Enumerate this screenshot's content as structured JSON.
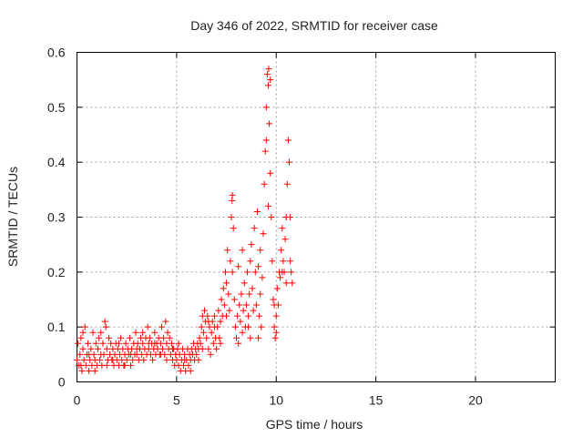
{
  "chart_data": {
    "type": "scatter",
    "title": "Day 346 of 2022, SRMTID for receiver case",
    "xlabel": "GPS time / hours",
    "ylabel": "SRMTID / TECUs",
    "xlim": [
      0,
      24
    ],
    "ylim": [
      0,
      0.6
    ],
    "xticks": [
      "0",
      "5",
      "10",
      "15",
      "20"
    ],
    "xtick_values": [
      0,
      5,
      10,
      15,
      20
    ],
    "yticks": [
      "0",
      "0.1",
      "0.2",
      "0.3",
      "0.4",
      "0.5",
      "0.6"
    ],
    "ytick_values": [
      0,
      0.1,
      0.2,
      0.3,
      0.4,
      0.5,
      0.6
    ],
    "grid": true,
    "marker": "+",
    "color": "#ff0000",
    "series": [
      {
        "name": "SRMTID",
        "points": [
          [
            0.0,
            0.04
          ],
          [
            0.05,
            0.07
          ],
          [
            0.1,
            0.03
          ],
          [
            0.15,
            0.05
          ],
          [
            0.2,
            0.08
          ],
          [
            0.25,
            0.02
          ],
          [
            0.3,
            0.06
          ],
          [
            0.35,
            0.04
          ],
          [
            0.4,
            0.1
          ],
          [
            0.45,
            0.03
          ],
          [
            0.5,
            0.05
          ],
          [
            0.55,
            0.07
          ],
          [
            0.6,
            0.02
          ],
          [
            0.65,
            0.04
          ],
          [
            0.7,
            0.06
          ],
          [
            0.75,
            0.03
          ],
          [
            0.8,
            0.09
          ],
          [
            0.85,
            0.05
          ],
          [
            0.9,
            0.04
          ],
          [
            0.95,
            0.07
          ],
          [
            1.0,
            0.03
          ],
          [
            1.05,
            0.06
          ],
          [
            1.1,
            0.08
          ],
          [
            1.15,
            0.04
          ],
          [
            1.2,
            0.05
          ],
          [
            1.25,
            0.03
          ],
          [
            1.3,
            0.07
          ],
          [
            1.35,
            0.05
          ],
          [
            1.4,
            0.11
          ],
          [
            1.45,
            0.1
          ],
          [
            1.5,
            0.06
          ],
          [
            1.55,
            0.04
          ],
          [
            1.6,
            0.08
          ],
          [
            1.65,
            0.05
          ],
          [
            1.7,
            0.07
          ],
          [
            1.75,
            0.04
          ],
          [
            1.8,
            0.06
          ],
          [
            1.85,
            0.03
          ],
          [
            1.9,
            0.05
          ],
          [
            1.95,
            0.07
          ],
          [
            2.0,
            0.04
          ],
          [
            2.05,
            0.06
          ],
          [
            2.1,
            0.03
          ],
          [
            2.15,
            0.05
          ],
          [
            2.2,
            0.08
          ],
          [
            2.25,
            0.04
          ],
          [
            2.3,
            0.06
          ],
          [
            2.35,
            0.03
          ],
          [
            2.4,
            0.05
          ],
          [
            2.45,
            0.07
          ],
          [
            2.5,
            0.04
          ],
          [
            2.55,
            0.06
          ],
          [
            2.6,
            0.05
          ],
          [
            2.65,
            0.08
          ],
          [
            2.7,
            0.03
          ],
          [
            2.75,
            0.06
          ],
          [
            2.8,
            0.04
          ],
          [
            2.85,
            0.07
          ],
          [
            2.9,
            0.05
          ],
          [
            2.95,
            0.09
          ],
          [
            3.0,
            0.05
          ],
          [
            3.05,
            0.07
          ],
          [
            3.1,
            0.04
          ],
          [
            3.15,
            0.06
          ],
          [
            3.2,
            0.08
          ],
          [
            3.25,
            0.05
          ],
          [
            3.3,
            0.07
          ],
          [
            3.35,
            0.04
          ],
          [
            3.4,
            0.06
          ],
          [
            3.45,
            0.08
          ],
          [
            3.5,
            0.05
          ],
          [
            3.55,
            0.1
          ],
          [
            3.6,
            0.06
          ],
          [
            3.65,
            0.08
          ],
          [
            3.7,
            0.05
          ],
          [
            3.75,
            0.07
          ],
          [
            3.8,
            0.04
          ],
          [
            3.85,
            0.06
          ],
          [
            3.9,
            0.09
          ],
          [
            3.95,
            0.05
          ],
          [
            4.0,
            0.07
          ],
          [
            4.05,
            0.06
          ],
          [
            4.1,
            0.08
          ],
          [
            4.15,
            0.05
          ],
          [
            4.2,
            0.07
          ],
          [
            4.25,
            0.1
          ],
          [
            4.3,
            0.06
          ],
          [
            4.35,
            0.08
          ],
          [
            4.4,
            0.05
          ],
          [
            4.45,
            0.11
          ],
          [
            4.5,
            0.07
          ],
          [
            4.55,
            0.09
          ],
          [
            4.6,
            0.06
          ],
          [
            4.65,
            0.08
          ],
          [
            4.7,
            0.05
          ],
          [
            4.75,
            0.07
          ],
          [
            4.8,
            0.04
          ],
          [
            4.85,
            0.06
          ],
          [
            4.9,
            0.03
          ],
          [
            4.95,
            0.05
          ],
          [
            5.0,
            0.04
          ],
          [
            5.05,
            0.06
          ],
          [
            5.1,
            0.03
          ],
          [
            5.15,
            0.05
          ],
          [
            5.2,
            0.02
          ],
          [
            5.25,
            0.04
          ],
          [
            5.3,
            0.06
          ],
          [
            5.35,
            0.03
          ],
          [
            5.4,
            0.05
          ],
          [
            5.45,
            0.02
          ],
          [
            5.5,
            0.04
          ],
          [
            5.55,
            0.06
          ],
          [
            5.6,
            0.03
          ],
          [
            5.65,
            0.05
          ],
          [
            5.7,
            0.04
          ],
          [
            5.75,
            0.06
          ],
          [
            5.8,
            0.05
          ],
          [
            5.85,
            0.07
          ],
          [
            5.9,
            0.04
          ],
          [
            5.95,
            0.06
          ],
          [
            6.0,
            0.05
          ],
          [
            6.05,
            0.07
          ],
          [
            6.1,
            0.06
          ],
          [
            6.15,
            0.08
          ],
          [
            6.2,
            0.07
          ],
          [
            6.25,
            0.1
          ],
          [
            6.3,
            0.12
          ],
          [
            6.35,
            0.09
          ],
          [
            6.4,
            0.13
          ],
          [
            6.45,
            0.11
          ],
          [
            6.5,
            0.08
          ],
          [
            6.55,
            0.12
          ],
          [
            6.6,
            0.06
          ],
          [
            6.65,
            0.1
          ],
          [
            6.7,
            0.05
          ],
          [
            6.75,
            0.09
          ],
          [
            6.8,
            0.11
          ],
          [
            6.85,
            0.07
          ],
          [
            6.9,
            0.12
          ],
          [
            6.95,
            0.08
          ],
          [
            7.0,
            0.06
          ],
          [
            7.05,
            0.1
          ],
          [
            7.1,
            0.13
          ],
          [
            7.15,
            0.08
          ],
          [
            7.2,
            0.11
          ],
          [
            7.25,
            0.15
          ],
          [
            7.3,
            0.12
          ],
          [
            7.35,
            0.17
          ],
          [
            7.4,
            0.14
          ],
          [
            7.45,
            0.2
          ],
          [
            7.5,
            0.18
          ],
          [
            7.55,
            0.24
          ],
          [
            7.6,
            0.16
          ],
          [
            7.65,
            0.13
          ],
          [
            7.7,
            0.22
          ],
          [
            7.75,
            0.3
          ],
          [
            7.8,
            0.34
          ],
          [
            7.85,
            0.28
          ],
          [
            7.9,
            0.15
          ],
          [
            7.95,
            0.1
          ],
          [
            8.0,
            0.08
          ],
          [
            8.05,
            0.12
          ],
          [
            8.1,
            0.07
          ],
          [
            8.15,
            0.14
          ],
          [
            8.2,
            0.11
          ],
          [
            8.25,
            0.16
          ],
          [
            8.3,
            0.09
          ],
          [
            8.35,
            0.13
          ],
          [
            8.4,
            0.18
          ],
          [
            8.45,
            0.1
          ],
          [
            8.5,
            0.14
          ],
          [
            8.55,
            0.2
          ],
          [
            8.6,
            0.12
          ],
          [
            8.65,
            0.16
          ],
          [
            8.7,
            0.22
          ],
          [
            8.75,
            0.25
          ],
          [
            8.8,
            0.17
          ],
          [
            8.85,
            0.13
          ],
          [
            8.9,
            0.28
          ],
          [
            8.95,
            0.2
          ],
          [
            9.0,
            0.14
          ],
          [
            9.05,
            0.31
          ],
          [
            9.1,
            0.21
          ],
          [
            9.15,
            0.12
          ],
          [
            9.2,
            0.16
          ],
          [
            9.25,
            0.1
          ],
          [
            9.3,
            0.19
          ],
          [
            9.35,
            0.27
          ],
          [
            9.4,
            0.36
          ],
          [
            9.45,
            0.42
          ],
          [
            9.5,
            0.5
          ],
          [
            9.55,
            0.56
          ],
          [
            9.6,
            0.54
          ],
          [
            9.65,
            0.47
          ],
          [
            9.7,
            0.38
          ],
          [
            9.75,
            0.3
          ],
          [
            9.8,
            0.22
          ],
          [
            9.85,
            0.15
          ],
          [
            9.9,
            0.1
          ],
          [
            9.95,
            0.08
          ],
          [
            10.0,
            0.12
          ],
          [
            10.05,
            0.17
          ],
          [
            10.1,
            0.14
          ],
          [
            10.15,
            0.2
          ],
          [
            10.2,
            0.19
          ],
          [
            10.25,
            0.24
          ],
          [
            10.3,
            0.28
          ],
          [
            10.35,
            0.22
          ],
          [
            10.4,
            0.2
          ],
          [
            10.45,
            0.26
          ],
          [
            10.5,
            0.3
          ],
          [
            10.55,
            0.36
          ],
          [
            10.6,
            0.44
          ],
          [
            10.65,
            0.4
          ],
          [
            10.7,
            0.22
          ],
          [
            10.75,
            0.2
          ],
          [
            10.8,
            0.18
          ],
          [
            9.62,
            0.57
          ],
          [
            9.7,
            0.55
          ],
          [
            7.78,
            0.33
          ],
          [
            0.2,
            0.03
          ],
          [
            0.6,
            0.05
          ],
          [
            1.2,
            0.09
          ],
          [
            1.8,
            0.04
          ],
          [
            2.4,
            0.03
          ],
          [
            3.0,
            0.06
          ],
          [
            3.6,
            0.07
          ],
          [
            4.2,
            0.05
          ],
          [
            4.8,
            0.06
          ],
          [
            5.4,
            0.04
          ],
          [
            6.1,
            0.04
          ],
          [
            6.6,
            0.11
          ],
          [
            7.2,
            0.07
          ],
          [
            7.8,
            0.2
          ],
          [
            8.3,
            0.24
          ],
          [
            8.7,
            0.08
          ],
          [
            9.2,
            0.24
          ],
          [
            9.6,
            0.32
          ],
          [
            10.0,
            0.09
          ],
          [
            10.5,
            0.18
          ],
          [
            0.3,
            0.09
          ],
          [
            0.9,
            0.02
          ],
          [
            1.5,
            0.03
          ],
          [
            2.1,
            0.07
          ],
          [
            2.7,
            0.05
          ],
          [
            3.3,
            0.09
          ],
          [
            3.9,
            0.07
          ],
          [
            4.5,
            0.04
          ],
          [
            5.1,
            0.07
          ],
          [
            5.7,
            0.02
          ],
          [
            6.3,
            0.06
          ],
          [
            6.9,
            0.1
          ],
          [
            7.5,
            0.12
          ],
          [
            8.1,
            0.21
          ],
          [
            8.6,
            0.1
          ],
          [
            9.1,
            0.08
          ],
          [
            9.5,
            0.44
          ],
          [
            9.9,
            0.14
          ],
          [
            10.3,
            0.2
          ],
          [
            10.7,
            0.3
          ]
        ]
      }
    ]
  }
}
